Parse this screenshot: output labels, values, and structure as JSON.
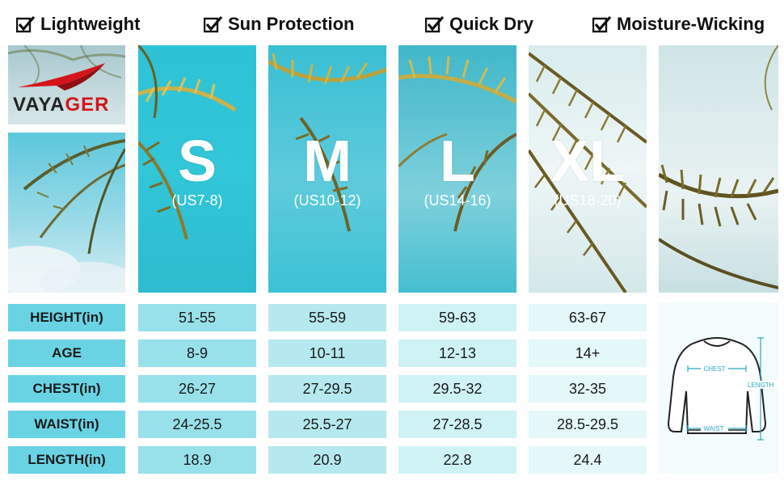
{
  "features": [
    "Lightweight",
    "Sun Protection",
    "Quick Dry",
    "Moisture-Wicking"
  ],
  "brand": {
    "part1": "VAYA",
    "part2": "GER",
    "accent_color": "#d4151b"
  },
  "sizes": [
    {
      "letter": "S",
      "us": "(US7-8)"
    },
    {
      "letter": "M",
      "us": "(US10-12)"
    },
    {
      "letter": "L",
      "us": "(US14-16)"
    },
    {
      "letter": "XL",
      "us": "(US18-20)"
    }
  ],
  "table": {
    "rows": [
      {
        "label": "HEIGHT(in)",
        "values": [
          "51-55",
          "55-59",
          "59-63",
          "63-67"
        ]
      },
      {
        "label": "AGE",
        "values": [
          "8-9",
          "10-11",
          "12-13",
          "14+"
        ]
      },
      {
        "label": "CHEST(in)",
        "values": [
          "26-27",
          "27-29.5",
          "29.5-32",
          "32-35"
        ]
      },
      {
        "label": "WAIST(in)",
        "values": [
          "24-25.5",
          "25.5-27",
          "27-28.5",
          "28.5-29.5"
        ]
      },
      {
        "label": "LENGTH(in)",
        "values": [
          "18.9",
          "20.9",
          "22.8",
          "24.4"
        ]
      }
    ]
  },
  "diagram": {
    "chest": "CHEST",
    "waist": "WAIST",
    "length": "LENGTH"
  }
}
